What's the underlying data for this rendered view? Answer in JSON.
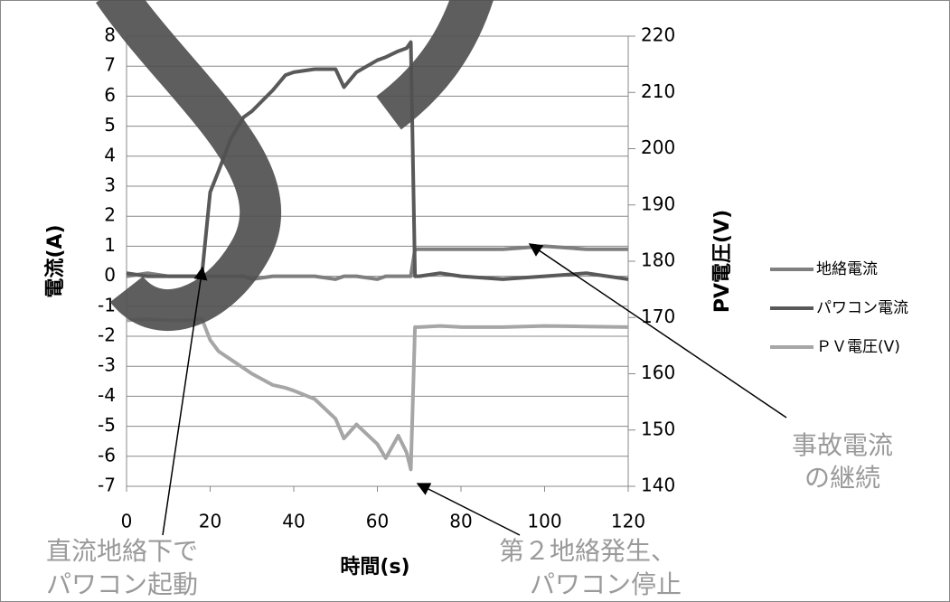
{
  "chart_data": {
    "type": "line",
    "xlabel": "時間(s)",
    "ylabel": "電流(A)",
    "y2label": "PV電圧(V)",
    "x": [
      0,
      5,
      10,
      15,
      18,
      20,
      22,
      25,
      28,
      30,
      35,
      38,
      40,
      45,
      50,
      52,
      55,
      60,
      62,
      65,
      67,
      68,
      69,
      70,
      75,
      80,
      90,
      100,
      110,
      120
    ],
    "series": [
      {
        "name": "地絡電流",
        "color": "#7f7f7f",
        "values": [
          0,
          0.1,
          0,
          0,
          0,
          0,
          0,
          0,
          0,
          -0.1,
          0,
          0,
          0,
          0,
          -0.1,
          0,
          0,
          -0.1,
          0,
          0,
          0,
          0,
          0.9,
          0.9,
          0.9,
          0.9,
          0.9,
          1,
          0.9,
          0.9
        ]
      },
      {
        "name": "パワコン電流",
        "color": "#595959",
        "values": [
          0.1,
          0,
          0,
          0,
          0,
          2.8,
          3.5,
          4.6,
          5.3,
          5.5,
          6.2,
          6.7,
          6.8,
          6.9,
          6.9,
          6.3,
          6.8,
          7.2,
          7.3,
          7.5,
          7.6,
          7.8,
          0,
          0,
          0.1,
          0,
          -0.1,
          0,
          0.1,
          -0.1
        ]
      },
      {
        "name": "ＰＶ電圧(V)",
        "color": "#a6a6a6",
        "axis": "y2",
        "values": [
          169.5,
          169.7,
          169.5,
          169.5,
          169.8,
          166,
          164,
          162.5,
          161,
          160,
          158,
          157.5,
          157,
          155.5,
          152,
          148.5,
          151,
          147.5,
          145,
          149,
          146,
          143,
          168.3,
          168.3,
          168.5,
          168.3,
          168.3,
          168.5,
          168.4,
          168.3
        ]
      }
    ],
    "xlim": [
      0,
      120
    ],
    "xticks": [
      0,
      20,
      40,
      60,
      80,
      100,
      120
    ],
    "ylim": [
      -7,
      8
    ],
    "yticks": [
      -7,
      -6,
      -5,
      -4,
      -3,
      -2,
      -1,
      0,
      1,
      2,
      3,
      4,
      5,
      6,
      7,
      8
    ],
    "y2lim": [
      140,
      220
    ],
    "y2ticks": [
      140,
      150,
      160,
      170,
      180,
      190,
      200,
      210,
      220
    ],
    "grid": true,
    "legend": "right",
    "annotations": [
      {
        "lines": [
          "直流地絡下で",
          "パワコン起動"
        ]
      },
      {
        "lines": [
          "第２地絡発生、",
          "パワコン停止"
        ]
      },
      {
        "lines": [
          "事故電流",
          "の継続"
        ]
      }
    ]
  }
}
